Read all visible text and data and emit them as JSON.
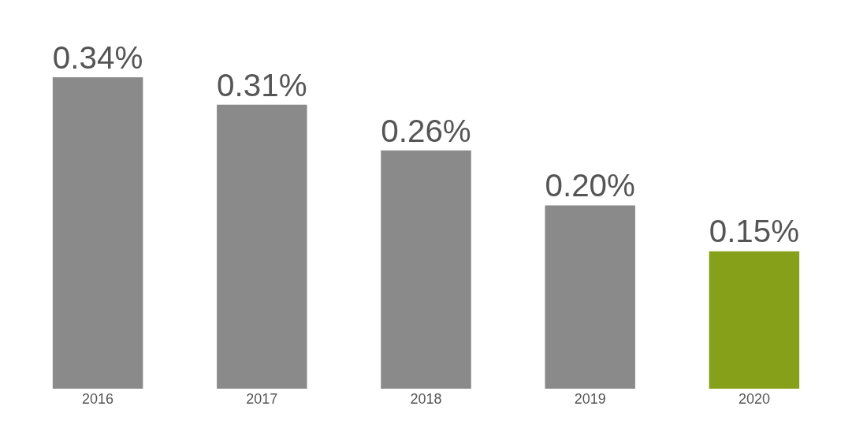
{
  "chart_data": {
    "type": "bar",
    "categories": [
      "2016",
      "2017",
      "2018",
      "2019",
      "2020"
    ],
    "values": [
      0.34,
      0.31,
      0.26,
      0.2,
      0.15
    ],
    "value_labels": [
      "0.34%",
      "0.31%",
      "0.26%",
      "0.20%",
      "0.15%"
    ],
    "colors": [
      "#8a8a8a",
      "#8a8a8a",
      "#8a8a8a",
      "#8a8a8a",
      "#86a01a"
    ],
    "legend": false
  }
}
